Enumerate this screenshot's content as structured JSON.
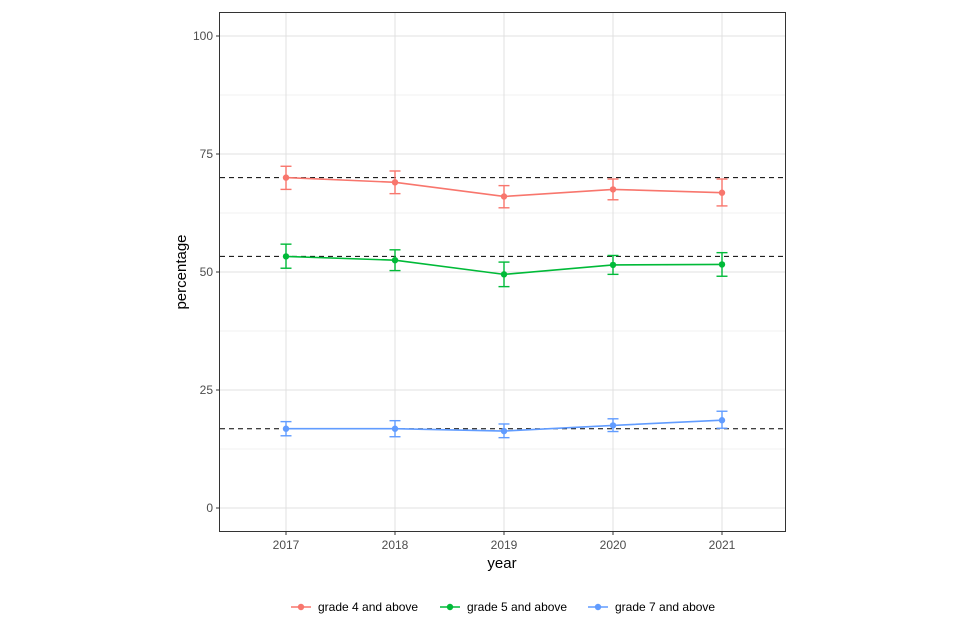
{
  "chart_data": {
    "type": "line",
    "title": "",
    "xlabel": "year",
    "ylabel": "percentage",
    "x": [
      "2017",
      "2018",
      "2019",
      "2020",
      "2021"
    ],
    "ylim": [
      -5,
      105
    ],
    "yticks": [
      "0",
      "25",
      "50",
      "75",
      "100"
    ],
    "grid": true,
    "legend_position": "bottom",
    "series": [
      {
        "name": "grade 4 and above",
        "color": "#F8766D",
        "values": [
          70.0,
          69.0,
          66.0,
          67.5,
          66.8
        ],
        "lower": [
          67.5,
          66.6,
          63.6,
          65.3,
          64.0
        ],
        "upper": [
          72.4,
          71.4,
          68.3,
          69.7,
          69.7
        ],
        "reference": 70.0
      },
      {
        "name": "grade 5 and above",
        "color": "#00BA38",
        "values": [
          53.3,
          52.5,
          49.5,
          51.5,
          51.6
        ],
        "lower": [
          50.8,
          50.3,
          46.9,
          49.5,
          49.1
        ],
        "upper": [
          55.9,
          54.7,
          52.1,
          53.5,
          54.1
        ],
        "reference": 53.3
      },
      {
        "name": "grade 7 and above",
        "color": "#619CFF",
        "values": [
          16.8,
          16.8,
          16.3,
          17.5,
          18.6
        ],
        "lower": [
          15.3,
          15.1,
          14.9,
          16.2,
          16.9
        ],
        "upper": [
          18.3,
          18.5,
          17.8,
          18.9,
          20.5
        ],
        "reference": 16.8
      }
    ]
  }
}
